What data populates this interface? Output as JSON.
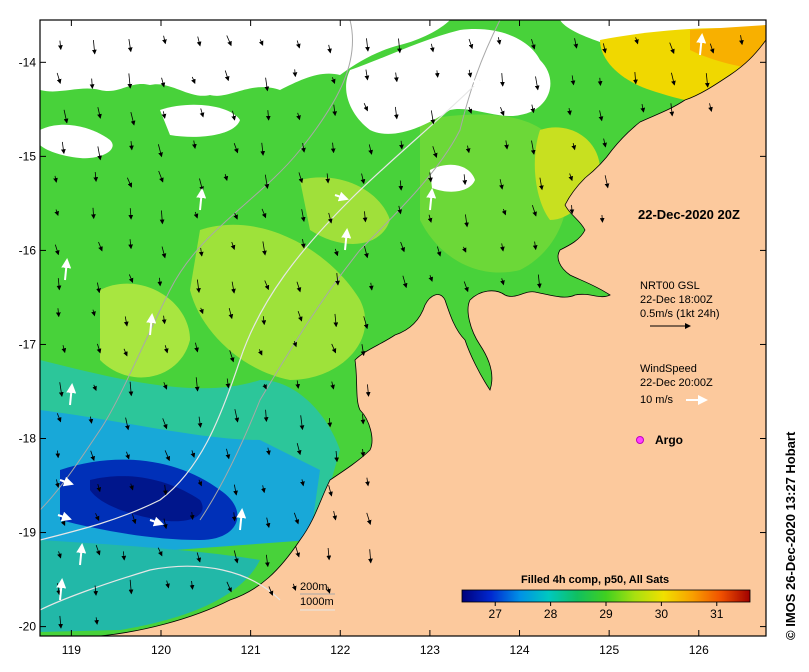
{
  "map": {
    "timestamp_label": "22-Dec-2020 20Z",
    "lon_ticks": [
      "119",
      "120",
      "121",
      "122",
      "123",
      "124",
      "125",
      "126"
    ],
    "lat_ticks": [
      "-14",
      "-15",
      "-16",
      "-17",
      "-18",
      "-19",
      "-20"
    ],
    "lon_range": [
      118.65,
      126.75
    ],
    "lat_range": [
      -20.1,
      -13.55
    ],
    "current_legend": {
      "line1": "NRT00 GSL",
      "line2": "22-Dec 18:00Z",
      "line3": "0.5m/s (1kt 24h)"
    },
    "wind_legend": {
      "line1": "WindSpeed",
      "line2": "22-Dec 20:00Z",
      "line3": "10 m/s"
    },
    "argo_label": "Argo",
    "depth_legend": {
      "line1": "200m",
      "line2": "1000m"
    },
    "colorbar": {
      "title": "Filled 4h comp, p50, All Sats",
      "ticks": [
        "27",
        "28",
        "29",
        "30",
        "31"
      ],
      "min": 26.4,
      "max": 31.6,
      "colors": [
        "#00007a",
        "#0028d0",
        "#0090e6",
        "#00c8c0",
        "#10c060",
        "#40d020",
        "#a8e010",
        "#f0e000",
        "#f8a000",
        "#f05000",
        "#a00000"
      ]
    },
    "credit": "IMOS 26-Dec-2020 13:27 Hobart",
    "colors": {
      "land": "#fcc99d",
      "cloud": "#ffffff",
      "frame": "#000000"
    }
  }
}
